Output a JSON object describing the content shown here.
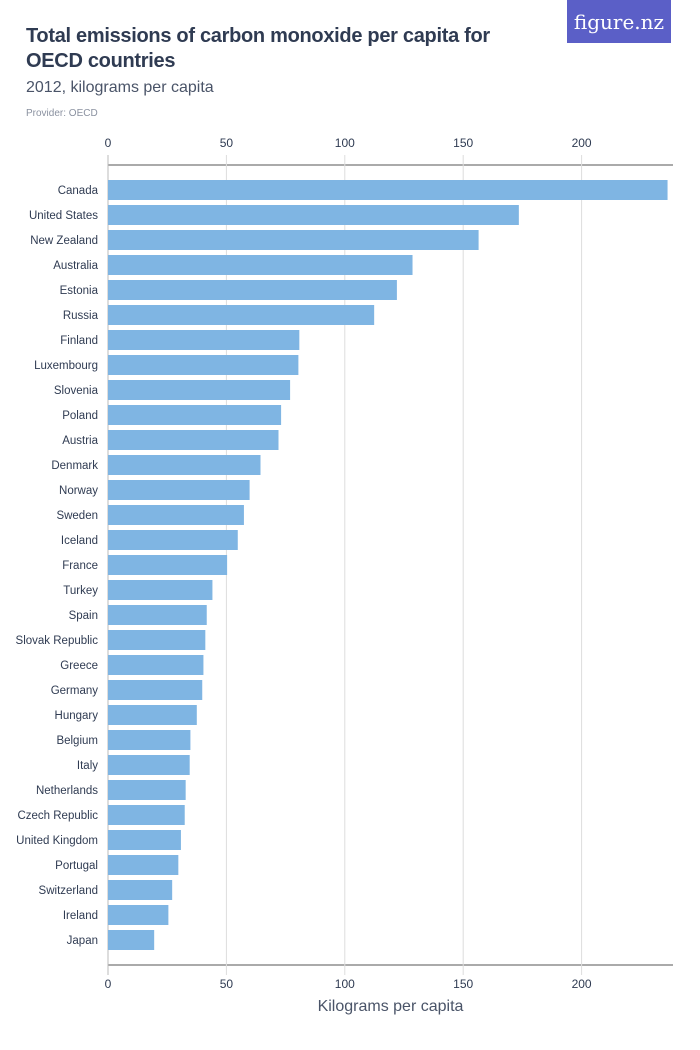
{
  "header": {
    "title": "Total emissions of carbon monoxide per capita for OECD countries",
    "subtitle": "2012, kilograms per capita",
    "provider": "Provider: OECD",
    "logo": "figure.nz"
  },
  "colors": {
    "bar": "#7fb5e3",
    "logo_bg": "#5b5fc7",
    "grid": "#dddddd"
  },
  "chart_data": {
    "type": "bar",
    "orientation": "horizontal",
    "title": "Total emissions of carbon monoxide per capita for OECD countries",
    "subtitle": "2012, kilograms per capita",
    "xlabel": "Kilograms per capita",
    "ylabel": "",
    "xlim": [
      0,
      240
    ],
    "xticks": [
      0,
      50,
      100,
      150,
      200
    ],
    "grid": true,
    "categories": [
      "Canada",
      "United States",
      "New Zealand",
      "Australia",
      "Estonia",
      "Russia",
      "Finland",
      "Luxembourg",
      "Slovenia",
      "Poland",
      "Austria",
      "Denmark",
      "Norway",
      "Sweden",
      "Iceland",
      "France",
      "Turkey",
      "Spain",
      "Slovak Republic",
      "Greece",
      "Germany",
      "Hungary",
      "Belgium",
      "Italy",
      "Netherlands",
      "Czech Republic",
      "United Kingdom",
      "Portugal",
      "Switzerland",
      "Ireland",
      "Japan"
    ],
    "values": [
      236.3,
      173.5,
      156.5,
      128.6,
      122.0,
      112.4,
      80.8,
      80.4,
      76.9,
      73.1,
      72.0,
      64.4,
      59.8,
      57.4,
      54.8,
      50.3,
      44.1,
      41.7,
      41.1,
      40.3,
      39.8,
      37.5,
      34.8,
      34.5,
      32.8,
      32.4,
      30.8,
      29.7,
      27.1,
      25.5,
      19.5
    ]
  }
}
